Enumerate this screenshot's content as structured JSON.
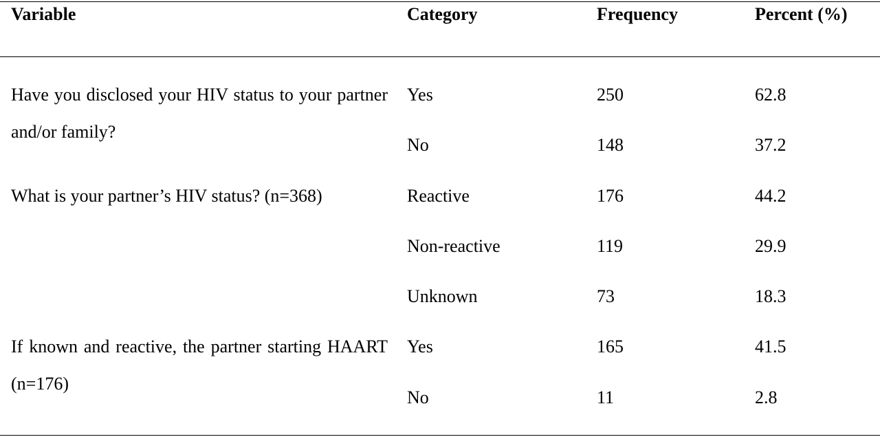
{
  "header": {
    "variable": "Variable",
    "category": "Category",
    "frequency": "Frequency",
    "percent": "Percent (%)"
  },
  "groups": [
    {
      "variable": "Have you disclosed your HIV status to your partner and/or family?",
      "rows": [
        {
          "category": "Yes",
          "frequency": "250",
          "percent": "62.8"
        },
        {
          "category": "No",
          "frequency": "148",
          "percent": "37.2"
        }
      ]
    },
    {
      "variable": "What is your partner’s HIV status? (n=368)",
      "rows": [
        {
          "category": "Reactive",
          "frequency": "176",
          "percent": "44.2"
        },
        {
          "category": "Non-reactive",
          "frequency": "119",
          "percent": "29.9"
        },
        {
          "category": "Unknown",
          "frequency": "73",
          "percent": "18.3"
        }
      ]
    },
    {
      "variable": "If known and reactive, the partner starting HAART (n=176)",
      "rows": [
        {
          "category": "Yes",
          "frequency": "165",
          "percent": "41.5"
        },
        {
          "category": "No",
          "frequency": "11",
          "percent": "2.8"
        }
      ]
    }
  ]
}
